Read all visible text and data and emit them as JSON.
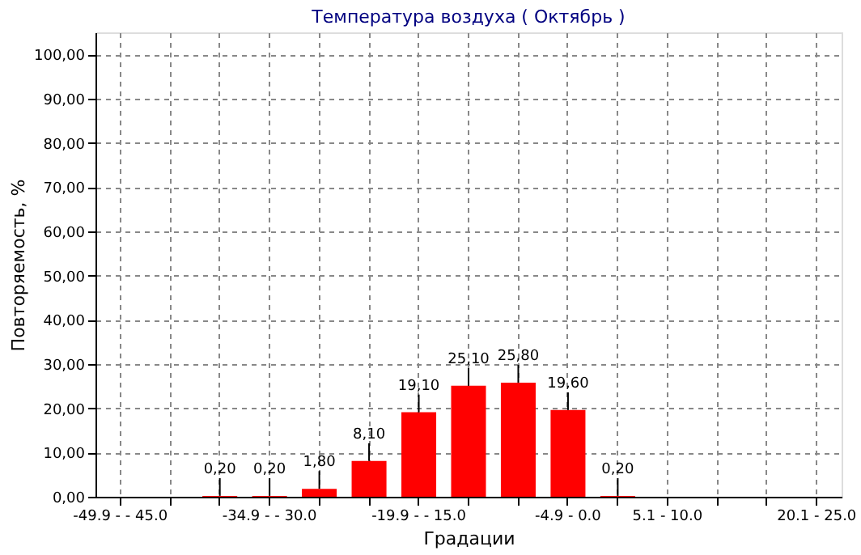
{
  "chart_data": {
    "type": "bar",
    "title": "Температура воздуха    ( Октябрь )",
    "xlabel": "Градации",
    "ylabel": "Повторяемость, %",
    "categories": [
      "-49.9 - - 45.0",
      null,
      null,
      "-34.9 - - 30.0",
      null,
      null,
      "-19.9 - - 15.0",
      null,
      null,
      "-4.9 - 0.0",
      null,
      "5.1 - 10.0",
      null,
      null,
      "20.1 - 25.0"
    ],
    "values": [
      0,
      0,
      0.2,
      0.2,
      1.8,
      8.1,
      19.1,
      25.1,
      25.8,
      19.6,
      0.2,
      0,
      0,
      0,
      0
    ],
    "value_labels": [
      null,
      null,
      "0,20",
      "0,20",
      "1,80",
      "8,10",
      "19,10",
      "25,10",
      "25,80",
      "19,60",
      "0,20",
      null,
      null,
      null,
      null
    ],
    "color": "#ff0000",
    "ylim": [
      0,
      105
    ],
    "yticks": [
      {
        "value": 0,
        "label": "0,00"
      },
      {
        "value": 10,
        "label": "10,00"
      },
      {
        "value": 20,
        "label": "20,00"
      },
      {
        "value": 30,
        "label": "30,00"
      },
      {
        "value": 40,
        "label": "40,00"
      },
      {
        "value": 50,
        "label": "50,00"
      },
      {
        "value": 60,
        "label": "60,00"
      },
      {
        "value": 70,
        "label": "70,00"
      },
      {
        "value": 80,
        "label": "80,00"
      },
      {
        "value": 90,
        "label": "90,00"
      },
      {
        "value": 100,
        "label": "100,00"
      }
    ],
    "grid": true
  }
}
